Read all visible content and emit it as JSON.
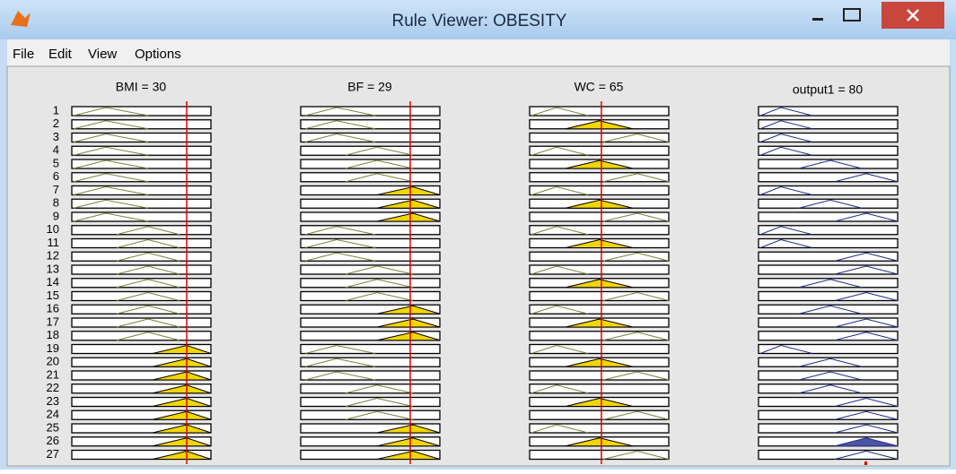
{
  "window": {
    "title": "Rule Viewer: OBESITY"
  },
  "menu": [
    "File",
    "Edit",
    "View",
    "Options"
  ],
  "columns": [
    "BMI = 30",
    "BF = 29",
    "WC = 65",
    "output1 = 80"
  ],
  "rules": [
    "1",
    "2",
    "3",
    "4",
    "5",
    "6",
    "7",
    "8",
    "9",
    "10",
    "11",
    "12",
    "13",
    "14",
    "15",
    "16",
    "17",
    "18",
    "19",
    "20",
    "21",
    "22",
    "23",
    "24",
    "25",
    "26",
    "27"
  ]
}
